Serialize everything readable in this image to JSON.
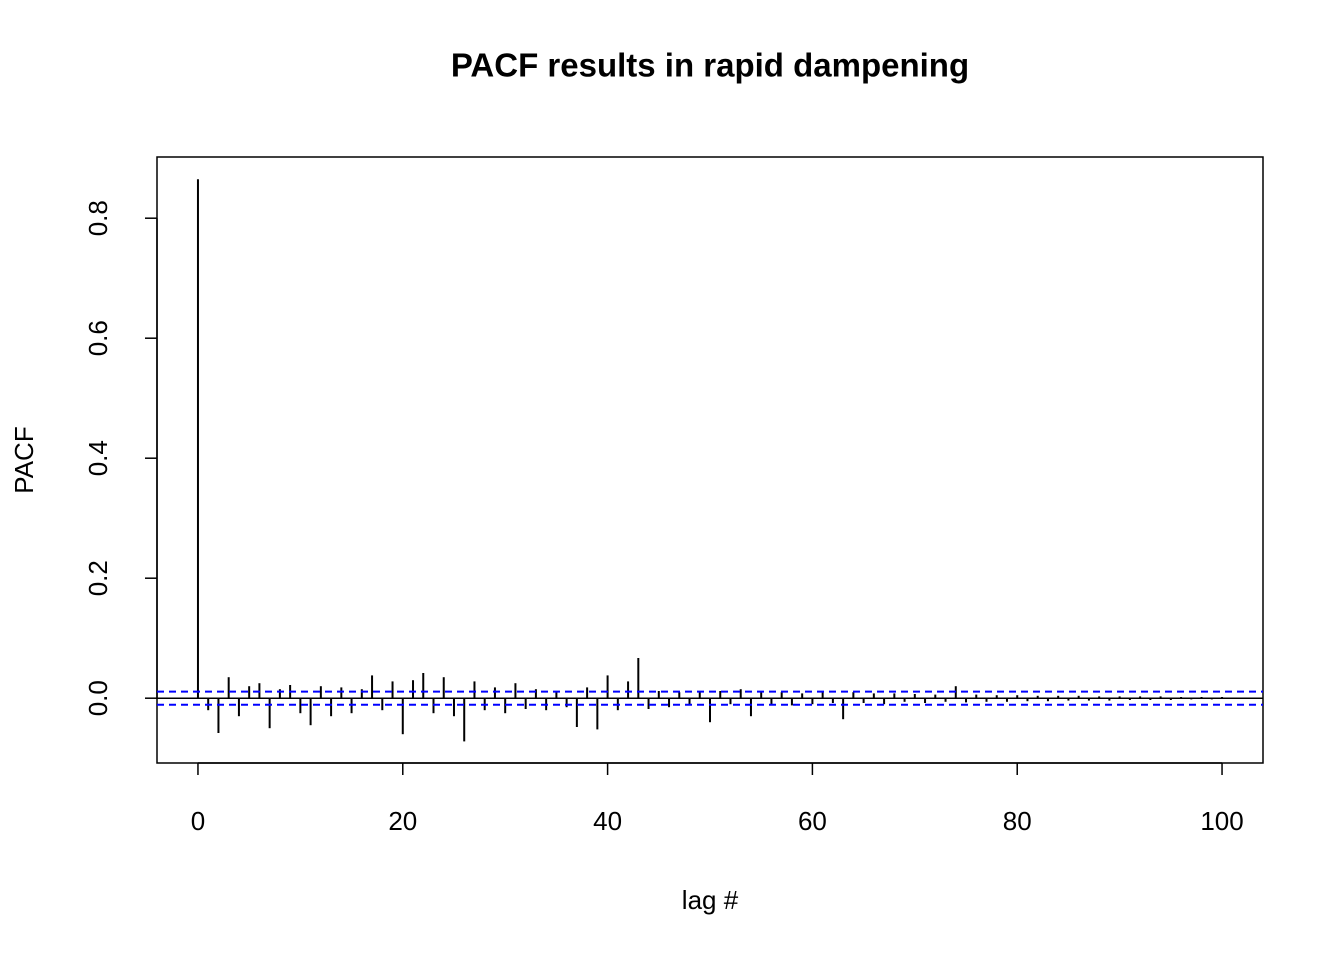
{
  "chart_data": {
    "type": "stem",
    "title": "PACF results in rapid dampening",
    "xlabel": "lag #",
    "ylabel": "PACF",
    "x": [
      0,
      1,
      2,
      3,
      4,
      5,
      6,
      7,
      8,
      9,
      10,
      11,
      12,
      13,
      14,
      15,
      16,
      17,
      18,
      19,
      20,
      21,
      22,
      23,
      24,
      25,
      26,
      27,
      28,
      29,
      30,
      31,
      32,
      33,
      34,
      35,
      36,
      37,
      38,
      39,
      40,
      41,
      42,
      43,
      44,
      45,
      46,
      47,
      48,
      49,
      50,
      51,
      52,
      53,
      54,
      55,
      56,
      57,
      58,
      59,
      60,
      61,
      62,
      63,
      64,
      65,
      66,
      67,
      68,
      69,
      70,
      71,
      72,
      73,
      74,
      75,
      76,
      77,
      78,
      79,
      80,
      81,
      82,
      83,
      84,
      85,
      86,
      87,
      88,
      89,
      90,
      91,
      92,
      93,
      94,
      95,
      96,
      97,
      98,
      99,
      100
    ],
    "values": [
      0.865,
      -0.02,
      -0.058,
      0.035,
      -0.03,
      0.02,
      0.025,
      -0.05,
      0.015,
      0.022,
      -0.025,
      -0.045,
      0.02,
      -0.03,
      0.018,
      -0.025,
      0.015,
      0.038,
      -0.02,
      0.028,
      -0.06,
      0.03,
      0.042,
      -0.025,
      0.035,
      -0.03,
      -0.072,
      0.028,
      -0.02,
      0.018,
      -0.025,
      0.025,
      -0.018,
      0.015,
      -0.02,
      0.012,
      -0.015,
      -0.048,
      0.018,
      -0.052,
      0.038,
      -0.02,
      0.028,
      0.067,
      -0.018,
      0.012,
      -0.015,
      0.01,
      -0.012,
      0.01,
      -0.04,
      0.012,
      -0.01,
      0.015,
      -0.03,
      0.012,
      -0.01,
      0.01,
      -0.012,
      0.008,
      -0.01,
      0.01,
      -0.008,
      -0.035,
      0.01,
      -0.008,
      0.008,
      -0.01,
      0.008,
      -0.006,
      0.007,
      -0.008,
      0.006,
      -0.006,
      0.02,
      -0.007,
      0.006,
      -0.006,
      0.005,
      -0.006,
      0.005,
      -0.005,
      0.004,
      -0.005,
      0.004,
      -0.004,
      0.004,
      -0.004,
      0.003,
      -0.004,
      0.003,
      -0.003,
      0.003,
      -0.003,
      0.003,
      -0.003,
      0.002,
      -0.002,
      0.002,
      -0.002,
      0.002
    ],
    "color": "#000000",
    "ci_lines": {
      "values": [
        0.011,
        -0.011
      ],
      "color": "#0000ff"
    },
    "xlim": [
      -4,
      104
    ],
    "ylim": [
      -0.108,
      0.902
    ],
    "xticks": [
      0,
      20,
      40,
      60,
      80,
      100
    ],
    "yticks": [
      {
        "value": 0,
        "label": "0.0"
      },
      {
        "value": 0.2,
        "label": "0.2"
      },
      {
        "value": 0.4,
        "label": "0.4"
      },
      {
        "value": 0.6,
        "label": "0.6"
      },
      {
        "value": 0.8,
        "label": "0.8"
      }
    ]
  }
}
